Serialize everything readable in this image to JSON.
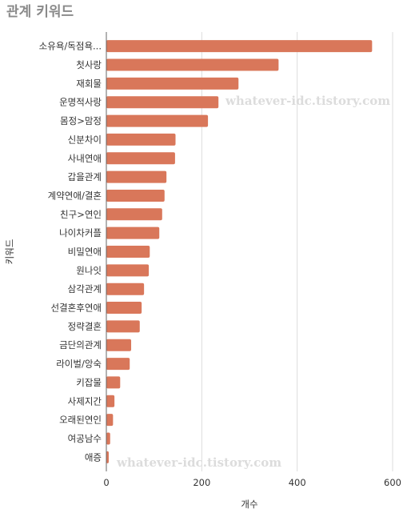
{
  "chart_data": {
    "type": "bar",
    "orientation": "horizontal",
    "title": "관계 키워드",
    "xlabel": "개수",
    "ylabel": "키워드",
    "xlim": [
      0,
      600
    ],
    "xticks": [
      0,
      200,
      400,
      600
    ],
    "grid": true,
    "bar_color": "#d9775a",
    "categories": [
      "소유욕/독점욕...",
      "첫사랑",
      "재회물",
      "운명적사랑",
      "몸정>맘정",
      "신분차이",
      "사내연애",
      "갑을관계",
      "계약연애/결혼",
      "친구>연인",
      "나이차커플",
      "비밀연애",
      "원나잇",
      "삼각관계",
      "선결혼후연애",
      "정략결혼",
      "금단의관계",
      "라이벌/앙숙",
      "키잡물",
      "사제지간",
      "오래된연인",
      "여공남수",
      "애증"
    ],
    "values": [
      557,
      361,
      277,
      235,
      213,
      145,
      144,
      126,
      122,
      117,
      111,
      91,
      89,
      79,
      74,
      70,
      52,
      49,
      29,
      17,
      14,
      8,
      5
    ]
  },
  "watermarks": [
    "whatever-idc.tistory.com",
    "whatever-idc.tistory.com"
  ]
}
